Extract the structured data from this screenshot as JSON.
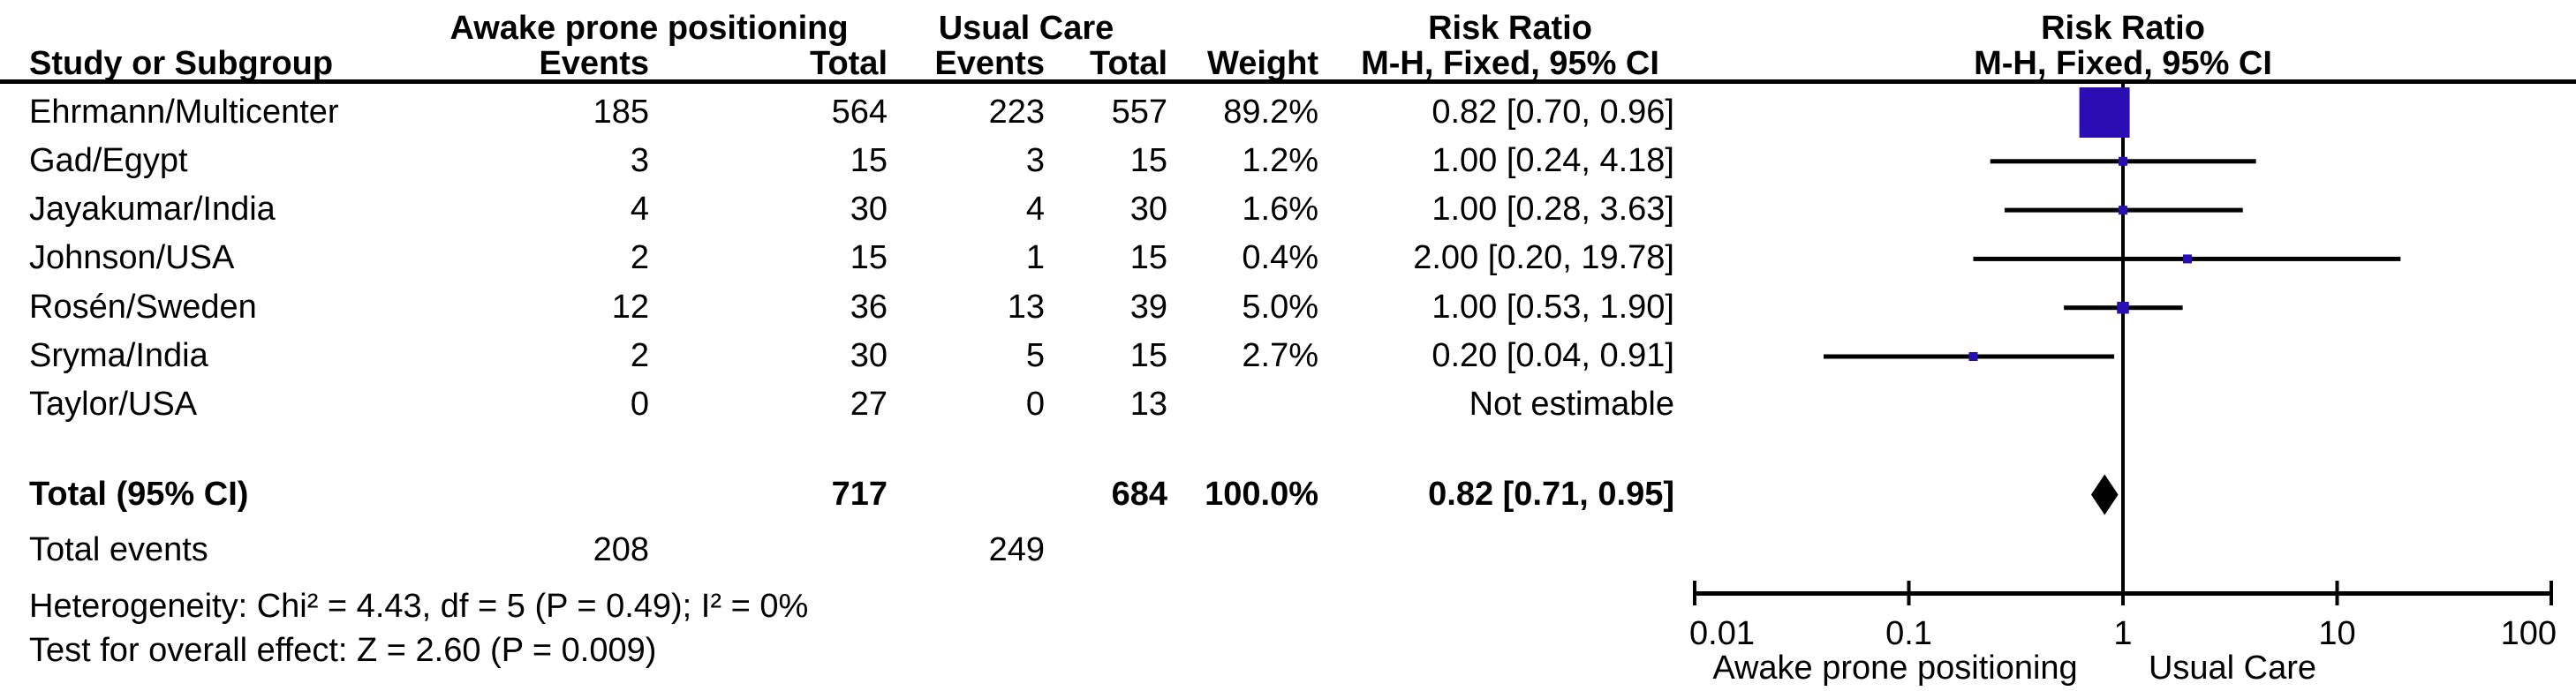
{
  "header": {
    "col_study": "Study or Subgroup",
    "group1": "Awake prone positioning",
    "group2": "Usual Care",
    "col_events": "Events",
    "col_total": "Total",
    "col_weight": "Weight",
    "risk_ratio": "Risk Ratio",
    "method": "M-H, Fixed, 95% CI"
  },
  "table": {
    "rows": [
      {
        "study": "Ehrmann/Multicenter",
        "e1": "185",
        "t1": "564",
        "e2": "223",
        "t2": "557",
        "weight": "89.2%",
        "rr": "0.82 [0.70, 0.96]"
      },
      {
        "study": "Gad/Egypt",
        "e1": "3",
        "t1": "15",
        "e2": "3",
        "t2": "15",
        "weight": "1.2%",
        "rr": "1.00 [0.24, 4.18]"
      },
      {
        "study": "Jayakumar/India",
        "e1": "4",
        "t1": "30",
        "e2": "4",
        "t2": "30",
        "weight": "1.6%",
        "rr": "1.00 [0.28, 3.63]"
      },
      {
        "study": "Johnson/USA",
        "e1": "2",
        "t1": "15",
        "e2": "1",
        "t2": "15",
        "weight": "0.4%",
        "rr": "2.00 [0.20, 19.78]"
      },
      {
        "study": "Rosén/Sweden",
        "e1": "12",
        "t1": "36",
        "e2": "13",
        "t2": "39",
        "weight": "5.0%",
        "rr": "1.00 [0.53, 1.90]"
      },
      {
        "study": "Sryma/India",
        "e1": "2",
        "t1": "30",
        "e2": "5",
        "t2": "15",
        "weight": "2.7%",
        "rr": "0.20 [0.04, 0.91]"
      },
      {
        "study": "Taylor/USA",
        "e1": "0",
        "t1": "27",
        "e2": "0",
        "t2": "13",
        "weight": "",
        "rr": "Not estimable"
      }
    ],
    "total": {
      "label": "Total (95% CI)",
      "t1": "717",
      "t2": "684",
      "weight": "100.0%",
      "rr": "0.82 [0.71, 0.95]"
    },
    "total_events": {
      "label": "Total events",
      "e1": "208",
      "e2": "249"
    },
    "heterogeneity": "Heterogeneity: Chi² = 4.43, df = 5 (P = 0.49); I² = 0%",
    "overall_effect": "Test for overall effect: Z = 2.60 (P = 0.009)"
  },
  "chart_data": {
    "type": "scatter",
    "subtype": "forest-plot",
    "scale": "log10",
    "xlim": [
      0.01,
      100
    ],
    "axis_ticks": [
      0.01,
      0.1,
      1,
      10,
      100
    ],
    "tick_labels": [
      "0.01",
      "0.1",
      "1",
      "10",
      "100"
    ],
    "favors_left": "Awake prone positioning",
    "favors_right": "Usual Care",
    "effect_measure": "Risk Ratio",
    "method": "M-H, Fixed, 95% CI",
    "marker_color": "#2a0eb4",
    "line_color": "#000000",
    "studies": [
      {
        "name": "Ehrmann/Multicenter",
        "rr": 0.82,
        "ci_low": 0.7,
        "ci_high": 0.96,
        "weight_pct": 89.2,
        "estimable": true
      },
      {
        "name": "Gad/Egypt",
        "rr": 1.0,
        "ci_low": 0.24,
        "ci_high": 4.18,
        "weight_pct": 1.2,
        "estimable": true
      },
      {
        "name": "Jayakumar/India",
        "rr": 1.0,
        "ci_low": 0.28,
        "ci_high": 3.63,
        "weight_pct": 1.6,
        "estimable": true
      },
      {
        "name": "Johnson/USA",
        "rr": 2.0,
        "ci_low": 0.2,
        "ci_high": 19.78,
        "weight_pct": 0.4,
        "estimable": true
      },
      {
        "name": "Rosén/Sweden",
        "rr": 1.0,
        "ci_low": 0.53,
        "ci_high": 1.9,
        "weight_pct": 5.0,
        "estimable": true
      },
      {
        "name": "Sryma/India",
        "rr": 0.2,
        "ci_low": 0.04,
        "ci_high": 0.91,
        "weight_pct": 2.7,
        "estimable": true
      },
      {
        "name": "Taylor/USA",
        "rr": null,
        "ci_low": null,
        "ci_high": null,
        "weight_pct": null,
        "estimable": false
      }
    ],
    "total": {
      "label": "Total (95% CI)",
      "rr": 0.82,
      "ci_low": 0.71,
      "ci_high": 0.95,
      "weight_pct": 100.0
    }
  }
}
